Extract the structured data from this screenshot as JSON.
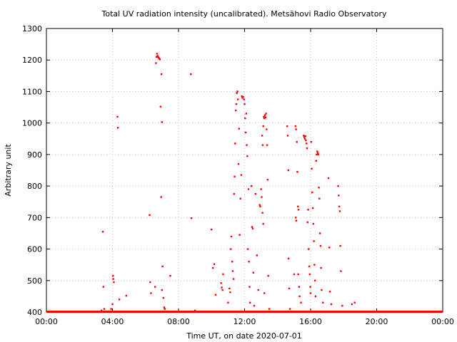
{
  "chart_data": {
    "type": "scatter",
    "title": "Total UV radiation intensity (uncalibrated). Metsähovi Radio Observatory",
    "xlabel": "Time UT, on date 2020-07-01",
    "ylabel": "Arbitrary unit",
    "xlim": [
      "00:00",
      "24:00"
    ],
    "ylim": [
      400,
      1300
    ],
    "x_ticks": [
      "00:00",
      "04:00",
      "08:00",
      "12:00",
      "16:00",
      "20:00",
      "00:00"
    ],
    "y_ticks": [
      400,
      500,
      600,
      700,
      800,
      900,
      1000,
      1100,
      1200,
      1300
    ],
    "grid": true,
    "marker_color": "#ff0000",
    "baseline": {
      "value": 400,
      "from": "00:00",
      "to": "24:00"
    },
    "series": [
      {
        "points": [
          {
            "x": "03:20",
            "y": 405
          },
          {
            "x": "03:25",
            "y": 655
          },
          {
            "x": "03:27",
            "y": 480
          },
          {
            "x": "03:30",
            "y": 410
          },
          {
            "x": "03:55",
            "y": 410
          },
          {
            "x": "04:00",
            "y": 425
          },
          {
            "x": "04:02",
            "y": 515
          },
          {
            "x": "04:03",
            "y": 505
          },
          {
            "x": "04:05",
            "y": 495
          },
          {
            "x": "04:18",
            "y": 1020
          },
          {
            "x": "04:20",
            "y": 985
          },
          {
            "x": "04:25",
            "y": 440
          },
          {
            "x": "04:50",
            "y": 452
          },
          {
            "x": "06:15",
            "y": 708
          },
          {
            "x": "06:17",
            "y": 495
          },
          {
            "x": "06:20",
            "y": 460
          },
          {
            "x": "06:35",
            "y": 480
          },
          {
            "x": "06:38",
            "y": 1190
          },
          {
            "x": "06:40",
            "y": 1210
          },
          {
            "x": "06:42",
            "y": 1220
          },
          {
            "x": "06:44",
            "y": 1213
          },
          {
            "x": "06:46",
            "y": 1210
          },
          {
            "x": "06:48",
            "y": 1207
          },
          {
            "x": "06:50",
            "y": 1205
          },
          {
            "x": "06:52",
            "y": 1202
          },
          {
            "x": "06:55",
            "y": 1052
          },
          {
            "x": "06:58",
            "y": 1155
          },
          {
            "x": "07:00",
            "y": 1003
          },
          {
            "x": "06:57",
            "y": 765
          },
          {
            "x": "07:02",
            "y": 545
          },
          {
            "x": "07:00",
            "y": 470
          },
          {
            "x": "07:05",
            "y": 445
          },
          {
            "x": "07:08",
            "y": 415
          },
          {
            "x": "07:30",
            "y": 515
          },
          {
            "x": "07:10",
            "y": 410
          },
          {
            "x": "08:45",
            "y": 1155
          },
          {
            "x": "08:47",
            "y": 698
          },
          {
            "x": "09:00",
            "y": 405
          },
          {
            "x": "10:00",
            "y": 662
          },
          {
            "x": "10:05",
            "y": 540
          },
          {
            "x": "10:10",
            "y": 552
          },
          {
            "x": "10:15",
            "y": 455
          },
          {
            "x": "10:35",
            "y": 492
          },
          {
            "x": "10:37",
            "y": 478
          },
          {
            "x": "10:40",
            "y": 470
          },
          {
            "x": "10:42",
            "y": 520
          },
          {
            "x": "11:00",
            "y": 430
          },
          {
            "x": "11:05",
            "y": 475
          },
          {
            "x": "11:08",
            "y": 463
          },
          {
            "x": "11:10",
            "y": 600
          },
          {
            "x": "11:12",
            "y": 640
          },
          {
            "x": "11:15",
            "y": 560
          },
          {
            "x": "11:17",
            "y": 530
          },
          {
            "x": "11:20",
            "y": 505
          },
          {
            "x": "11:22",
            "y": 775
          },
          {
            "x": "11:24",
            "y": 830
          },
          {
            "x": "11:26",
            "y": 935
          },
          {
            "x": "11:28",
            "y": 1040
          },
          {
            "x": "11:30",
            "y": 1060
          },
          {
            "x": "11:32",
            "y": 1095
          },
          {
            "x": "11:34",
            "y": 1100
          },
          {
            "x": "11:36",
            "y": 1075
          },
          {
            "x": "11:38",
            "y": 870
          },
          {
            "x": "11:40",
            "y": 982
          },
          {
            "x": "11:42",
            "y": 645
          },
          {
            "x": "11:45",
            "y": 760
          },
          {
            "x": "11:48",
            "y": 835
          },
          {
            "x": "11:50",
            "y": 1085
          },
          {
            "x": "11:52",
            "y": 1080
          },
          {
            "x": "11:55",
            "y": 1083
          },
          {
            "x": "11:58",
            "y": 1075
          },
          {
            "x": "12:00",
            "y": 1060
          },
          {
            "x": "12:02",
            "y": 1015
          },
          {
            "x": "12:04",
            "y": 970
          },
          {
            "x": "12:06",
            "y": 1030
          },
          {
            "x": "12:08",
            "y": 930
          },
          {
            "x": "12:10",
            "y": 895
          },
          {
            "x": "12:12",
            "y": 600
          },
          {
            "x": "12:14",
            "y": 790
          },
          {
            "x": "12:16",
            "y": 560
          },
          {
            "x": "12:18",
            "y": 480
          },
          {
            "x": "12:20",
            "y": 430
          },
          {
            "x": "12:25",
            "y": 800
          },
          {
            "x": "12:27",
            "y": 670
          },
          {
            "x": "12:30",
            "y": 665
          },
          {
            "x": "12:32",
            "y": 525
          },
          {
            "x": "12:35",
            "y": 420
          },
          {
            "x": "12:40",
            "y": 775
          },
          {
            "x": "12:45",
            "y": 580
          },
          {
            "x": "12:50",
            "y": 470
          },
          {
            "x": "12:55",
            "y": 740
          },
          {
            "x": "12:57",
            "y": 735
          },
          {
            "x": "13:00",
            "y": 790
          },
          {
            "x": "13:02",
            "y": 765
          },
          {
            "x": "13:04",
            "y": 960
          },
          {
            "x": "13:06",
            "y": 930
          },
          {
            "x": "13:08",
            "y": 990
          },
          {
            "x": "13:10",
            "y": 1020
          },
          {
            "x": "13:12",
            "y": 1015
          },
          {
            "x": "13:14",
            "y": 1025
          },
          {
            "x": "13:16",
            "y": 1018
          },
          {
            "x": "13:18",
            "y": 1030
          },
          {
            "x": "13:20",
            "y": 980
          },
          {
            "x": "13:22",
            "y": 930
          },
          {
            "x": "13:24",
            "y": 820
          },
          {
            "x": "13:26",
            "y": 515
          },
          {
            "x": "13:05",
            "y": 715
          },
          {
            "x": "13:08",
            "y": 680
          },
          {
            "x": "13:12",
            "y": 460
          },
          {
            "x": "13:30",
            "y": 410
          },
          {
            "x": "14:35",
            "y": 990
          },
          {
            "x": "14:37",
            "y": 960
          },
          {
            "x": "14:39",
            "y": 850
          },
          {
            "x": "14:40",
            "y": 570
          },
          {
            "x": "14:42",
            "y": 475
          },
          {
            "x": "14:45",
            "y": 410
          },
          {
            "x": "15:00",
            "y": 520
          },
          {
            "x": "15:05",
            "y": 990
          },
          {
            "x": "15:07",
            "y": 980
          },
          {
            "x": "15:10",
            "y": 940
          },
          {
            "x": "15:12",
            "y": 845
          },
          {
            "x": "15:14",
            "y": 735
          },
          {
            "x": "15:16",
            "y": 725
          },
          {
            "x": "15:06",
            "y": 700
          },
          {
            "x": "15:08",
            "y": 690
          },
          {
            "x": "15:15",
            "y": 520
          },
          {
            "x": "15:18",
            "y": 480
          },
          {
            "x": "15:20",
            "y": 450
          },
          {
            "x": "15:25",
            "y": 430
          },
          {
            "x": "15:35",
            "y": 960
          },
          {
            "x": "15:37",
            "y": 955
          },
          {
            "x": "15:39",
            "y": 950
          },
          {
            "x": "15:41",
            "y": 958
          },
          {
            "x": "15:43",
            "y": 945
          },
          {
            "x": "15:45",
            "y": 935
          },
          {
            "x": "15:47",
            "y": 920
          },
          {
            "x": "15:49",
            "y": 685
          },
          {
            "x": "15:51",
            "y": 725
          },
          {
            "x": "15:53",
            "y": 600
          },
          {
            "x": "15:55",
            "y": 545
          },
          {
            "x": "15:57",
            "y": 520
          },
          {
            "x": "15:59",
            "y": 480
          },
          {
            "x": "16:00",
            "y": 460
          },
          {
            "x": "16:02",
            "y": 940
          },
          {
            "x": "16:04",
            "y": 855
          },
          {
            "x": "16:06",
            "y": 780
          },
          {
            "x": "16:08",
            "y": 730
          },
          {
            "x": "16:10",
            "y": 680
          },
          {
            "x": "16:12",
            "y": 625
          },
          {
            "x": "16:14",
            "y": 550
          },
          {
            "x": "16:16",
            "y": 500
          },
          {
            "x": "16:18",
            "y": 450
          },
          {
            "x": "16:20",
            "y": 880
          },
          {
            "x": "16:22",
            "y": 900
          },
          {
            "x": "16:24",
            "y": 910
          },
          {
            "x": "16:26",
            "y": 905
          },
          {
            "x": "16:28",
            "y": 900
          },
          {
            "x": "16:30",
            "y": 795
          },
          {
            "x": "16:32",
            "y": 760
          },
          {
            "x": "16:34",
            "y": 650
          },
          {
            "x": "16:36",
            "y": 610
          },
          {
            "x": "16:38",
            "y": 540
          },
          {
            "x": "16:40",
            "y": 470
          },
          {
            "x": "16:45",
            "y": 430
          },
          {
            "x": "17:05",
            "y": 825
          },
          {
            "x": "17:08",
            "y": 605
          },
          {
            "x": "17:10",
            "y": 465
          },
          {
            "x": "17:15",
            "y": 425
          },
          {
            "x": "17:40",
            "y": 800
          },
          {
            "x": "17:42",
            "y": 770
          },
          {
            "x": "17:44",
            "y": 735
          },
          {
            "x": "17:46",
            "y": 720
          },
          {
            "x": "17:48",
            "y": 610
          },
          {
            "x": "17:50",
            "y": 530
          },
          {
            "x": "17:55",
            "y": 420
          },
          {
            "x": "18:30",
            "y": 425
          },
          {
            "x": "18:40",
            "y": 430
          }
        ]
      }
    ]
  }
}
